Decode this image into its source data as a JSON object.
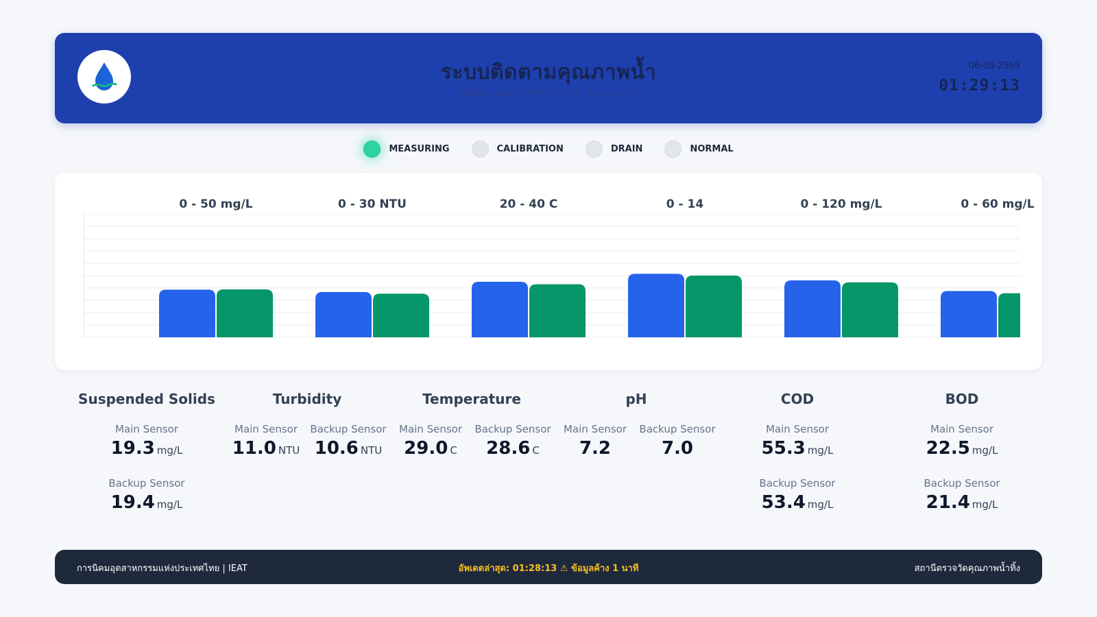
{
  "header": {
    "title": "ระบบติดตามคุณภาพน้ำ",
    "subtitle": "Water Quality Monitoring Dashboard",
    "date": "06-08-2569",
    "time": "01:29:13",
    "logo_icon": "water-drop-icon"
  },
  "status": {
    "active": "MEASURING",
    "items": [
      "MEASURING",
      "CALIBRATION",
      "DRAIN",
      "NORMAL"
    ]
  },
  "colors": {
    "header_bg": "#1e40af",
    "main_sensor": "#2563eb",
    "backup_sensor": "#059669",
    "status_active": "#2dd4a0",
    "footer_bg": "#1e293b",
    "footer_warning": "#fbbf24"
  },
  "chart_data": {
    "type": "bar",
    "series": [
      {
        "values": [
          19.3,
          11.0,
          29.0,
          7.2,
          55.3,
          22.5
        ]
      },
      {
        "values": [
          19.4,
          10.6,
          28.6,
          7.0,
          53.4,
          21.4
        ]
      }
    ],
    "ranges": [
      {
        "label": "0 - 50 mg/L",
        "min": 0,
        "max": 50
      },
      {
        "label": "0 - 30 NTU",
        "min": 0,
        "max": 30
      },
      {
        "label": "20 - 40 C",
        "min": 20,
        "max": 40
      },
      {
        "label": "0 - 14",
        "min": 0,
        "max": 14
      },
      {
        "label": "0 - 120 mg/L",
        "min": 0,
        "max": 120
      },
      {
        "label": "0 - 60 mg/L",
        "min": 0,
        "max": 60
      }
    ],
    "grid": true
  },
  "metrics": [
    {
      "name": "Suspended Solids",
      "layout": "stacked",
      "main_label": "Main Sensor",
      "main_value": "19.3",
      "main_unit": "mg/L",
      "backup_label": "Backup Sensor",
      "backup_value": "19.4",
      "backup_unit": "mg/L"
    },
    {
      "name": "Turbidity",
      "layout": "side",
      "main_label": "Main Sensor",
      "main_value": "11.0",
      "main_unit": "NTU",
      "backup_label": "Backup Sensor",
      "backup_value": "10.6",
      "backup_unit": "NTU"
    },
    {
      "name": "Temperature",
      "layout": "side",
      "main_label": "Main Sensor",
      "main_value": "29.0",
      "main_unit": "C",
      "backup_label": "Backup Sensor",
      "backup_value": "28.6",
      "backup_unit": "C"
    },
    {
      "name": "pH",
      "layout": "side",
      "main_label": "Main Sensor",
      "main_value": "7.2",
      "main_unit": "",
      "backup_label": "Backup Sensor",
      "backup_value": "7.0",
      "backup_unit": ""
    },
    {
      "name": "COD",
      "layout": "stacked",
      "main_label": "Main Sensor",
      "main_value": "55.3",
      "main_unit": "mg/L",
      "backup_label": "Backup Sensor",
      "backup_value": "53.4",
      "backup_unit": "mg/L"
    },
    {
      "name": "BOD",
      "layout": "stacked",
      "main_label": "Main Sensor",
      "main_value": "22.5",
      "main_unit": "mg/L",
      "backup_label": "Backup Sensor",
      "backup_value": "21.4",
      "backup_unit": "mg/L"
    }
  ],
  "footer": {
    "left": "การนิคมอุตสาหกรรมแห่งประเทศไทย | IEAT",
    "center": "อัพเดตล่าสุด: 01:28:13 ⚠ ข้อมูลค้าง 1 นาที",
    "right": "สถานีตรวจวัดคุณภาพน้ำทิ้ง"
  }
}
